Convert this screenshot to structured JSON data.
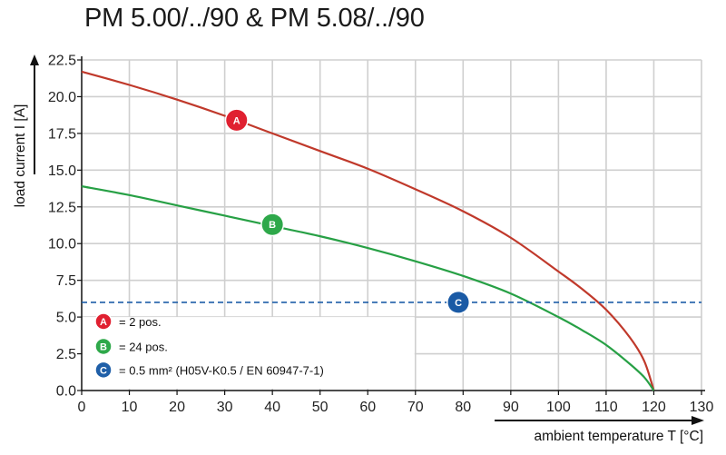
{
  "chart_data": {
    "type": "line",
    "title": "PM 5.00/../90 & PM 5.08/../90",
    "xlabel": "ambient temperature T [°C]",
    "ylabel": "load current I [A]",
    "xlim": [
      0,
      130
    ],
    "ylim": [
      0,
      22.5
    ],
    "x_ticks": [
      0,
      10,
      20,
      30,
      40,
      50,
      60,
      70,
      80,
      90,
      100,
      110,
      120,
      130
    ],
    "y_ticks": [
      0.0,
      2.5,
      5.0,
      7.5,
      10.0,
      12.5,
      15.0,
      17.5,
      20.0,
      22.5
    ],
    "x_tick_labels": [
      "0",
      "10",
      "20",
      "30",
      "40",
      "50",
      "60",
      "70",
      "80",
      "90",
      "100",
      "110",
      "120",
      "130"
    ],
    "y_tick_labels": [
      "0.0",
      "2.5",
      "5.0",
      "7.5",
      "10.0",
      "12.5",
      "15.0",
      "17.5",
      "20.0",
      "22.5"
    ],
    "grid": true,
    "series": [
      {
        "name": "A",
        "color": "#c0392b",
        "x": [
          0,
          10,
          20,
          30,
          40,
          50,
          60,
          70,
          80,
          90,
          100,
          105,
          110,
          115,
          118,
          120
        ],
        "values": [
          21.7,
          20.8,
          19.8,
          18.7,
          17.5,
          16.3,
          15.1,
          13.7,
          12.2,
          10.4,
          8.1,
          6.9,
          5.5,
          3.6,
          2.0,
          0.0
        ],
        "marker_x": 32.5,
        "marker_y": 18.4
      },
      {
        "name": "B",
        "color": "#27a045",
        "x": [
          0,
          10,
          20,
          30,
          40,
          50,
          60,
          70,
          80,
          90,
          100,
          105,
          110,
          115,
          118,
          120
        ],
        "values": [
          13.9,
          13.3,
          12.6,
          11.9,
          11.2,
          10.5,
          9.7,
          8.8,
          7.8,
          6.6,
          5.0,
          4.1,
          3.1,
          1.8,
          0.9,
          0.0
        ],
        "marker_x": 40,
        "marker_y": 11.3
      },
      {
        "name": "C",
        "color": "#1f5fa8",
        "style": "dashed",
        "x": [
          0,
          130
        ],
        "values": [
          6.0,
          6.0
        ],
        "marker_x": 79,
        "marker_y": 6.0
      }
    ],
    "legend": {
      "placement": "bottom-left",
      "entries": [
        {
          "key": "A",
          "text": "= 2 pos.",
          "color": "#e02030"
        },
        {
          "key": "B",
          "text": "= 24 pos.",
          "color": "#2ea84a"
        },
        {
          "key": "C",
          "text": "= 0.5 mm² (H05V-K0.5 / EN 60947-7-1)",
          "color": "#1f5fa8"
        }
      ]
    },
    "marker_colors": {
      "A": "#e02030",
      "B": "#2ea84a",
      "C": "#1a5aa5"
    }
  }
}
